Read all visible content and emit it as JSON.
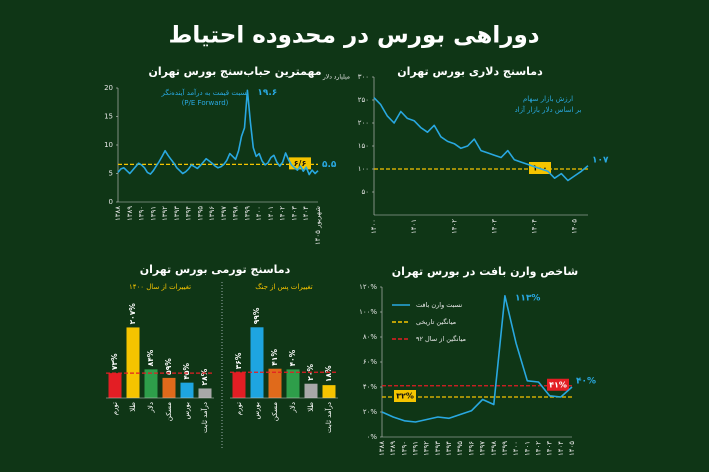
{
  "title": "دوراهی بورس در محدوده احتیاط",
  "chart_data": [
    {
      "type": "line",
      "title": "مهمترین حباب‌سنج بورس تهران",
      "annotations": [
        "نسبت قیمت به درآمد آینده‌نگر",
        "(P/E Forward)"
      ],
      "categories": [
        "۱۳۸۸",
        null,
        null,
        null,
        "۱۳۸۹",
        null,
        null,
        null,
        "۱۳۹۰",
        null,
        null,
        null,
        "۱۳۹۱",
        null,
        null,
        null,
        "۱۳۹۲",
        null,
        null,
        null,
        "۱۳۹۳",
        null,
        null,
        null,
        "۱۳۹۴",
        null,
        null,
        null,
        "۱۳۹۵",
        null,
        null,
        null,
        "۱۳۹۶",
        null,
        null,
        null,
        "۱۳۹۷",
        null,
        null,
        null,
        "۱۳۹۸",
        null,
        null,
        null,
        "۱۳۹۹",
        null,
        null,
        null,
        "۱۴۰۰",
        null,
        null,
        null,
        "۱۴۰۱",
        null,
        null,
        null,
        "۱۴۰۲",
        null,
        null,
        null,
        "۱۴۰۳",
        null,
        null,
        null,
        "۱۴۰۴",
        null,
        null,
        null,
        "شهریور ۱۴۰۵"
      ],
      "series": [
        {
          "color": "#29a8e0",
          "values": [
            5.2,
            5.8,
            6.0,
            5.5,
            5.0,
            5.6,
            6.2,
            6.8,
            6.5,
            6.0,
            5.2,
            4.9,
            5.5,
            6.3,
            7.1,
            8.0,
            9.0,
            8.2,
            7.5,
            6.8,
            6.0,
            5.5,
            5.0,
            5.3,
            5.8,
            6.5,
            6.2,
            5.9,
            6.4,
            7.0,
            7.6,
            7.2,
            6.8,
            6.3,
            6.0,
            6.2,
            6.6,
            7.3,
            8.5,
            8.0,
            7.5,
            9.0,
            11.5,
            13.0,
            19.6,
            14.0,
            9.5,
            8.0,
            8.5,
            7.2,
            6.5,
            6.9,
            7.8,
            8.2,
            7.0,
            6.3,
            7.0,
            8.6,
            7.4,
            6.5,
            6.0,
            5.6,
            6.3,
            5.4,
            6.1,
            4.8,
            5.6,
            5.0,
            5.5
          ],
          "value_labels": [
            null,
            null,
            null,
            null,
            null,
            null,
            null,
            null,
            null,
            null,
            null,
            null,
            null,
            null,
            null,
            null,
            null,
            null,
            null,
            null,
            null,
            null,
            null,
            null,
            null,
            null,
            null,
            null,
            null,
            null,
            null,
            null,
            null,
            null,
            null,
            null,
            null,
            null,
            null,
            null,
            null,
            null,
            null,
            null,
            "۱۹.۶",
            null,
            null,
            null,
            null,
            null,
            null,
            null,
            null,
            null,
            null,
            null,
            null,
            null,
            null,
            null,
            null,
            null,
            null,
            null,
            null,
            null,
            null,
            null,
            "۵.۵"
          ]
        }
      ],
      "reference_lines": [
        {
          "value": 6.6,
          "label": "۶/۶",
          "color": "#f5c400"
        }
      ],
      "ylim": [
        0,
        20
      ],
      "yticks": [
        0,
        5,
        10,
        15,
        20
      ]
    },
    {
      "type": "line",
      "title": "دماسنج دلاری بورس تهران",
      "y_label": "میلیارد دلار",
      "annotations": [
        "ارزش بازار سهام",
        "بر اساس دلار بازار آزاد"
      ],
      "categories": [
        "۱۴۰۰",
        null,
        null,
        null,
        null,
        null,
        "۱۴۰۱",
        null,
        null,
        null,
        null,
        null,
        "۱۴۰۲",
        null,
        null,
        null,
        null,
        null,
        "۱۴۰۳",
        null,
        null,
        null,
        null,
        null,
        "۱۴۰۴",
        null,
        null,
        null,
        null,
        null,
        "۱۴۰۵",
        null,
        null
      ],
      "series": [
        {
          "color": "#29a8e0",
          "values": [
            255,
            240,
            215,
            200,
            225,
            210,
            205,
            190,
            180,
            195,
            170,
            160,
            155,
            145,
            150,
            165,
            140,
            135,
            130,
            125,
            140,
            120,
            115,
            110,
            105,
            100,
            95,
            80,
            90,
            75,
            85,
            95,
            107
          ],
          "value_labels": [
            null,
            null,
            null,
            null,
            null,
            null,
            null,
            null,
            null,
            null,
            null,
            null,
            null,
            null,
            null,
            null,
            null,
            null,
            null,
            null,
            null,
            null,
            null,
            null,
            null,
            null,
            null,
            null,
            null,
            null,
            null,
            null,
            "۱۰۷"
          ]
        }
      ],
      "reference_lines": [
        {
          "value": 100,
          "label": "۱۰۰",
          "color": "#f5c400"
        }
      ],
      "ylim": [
        0,
        300
      ],
      "yticks": [
        {
          "value": 50,
          "label": "۵۰"
        },
        {
          "value": 100,
          "label": "۱۰۰"
        },
        {
          "value": 150,
          "label": "۱۵۰"
        },
        {
          "value": 200,
          "label": "۲۰۰"
        },
        {
          "value": 250,
          "label": "۲۵۰"
        },
        {
          "value": 300,
          "label": "۳۰۰"
        }
      ]
    },
    {
      "type": "bar-panels",
      "title": "دماسنج تورمی بورس تهران",
      "reference_color": "#e31e24",
      "panels": [
        {
          "subtitle": "تغییرات از سال ۱۴۰۰",
          "categories": [
            "تورم",
            "طلا",
            "دلار",
            "مسکن",
            "بورس",
            "درآمد ثابت"
          ],
          "values": [
            73,
            207,
            84,
            59,
            45,
            28
          ],
          "value_labels": [
            "۷۳%",
            "۲۰۷%",
            "۸۴%",
            "۵۹%",
            "۴۵%",
            "۲۸%"
          ],
          "colors": [
            "#e31e24",
            "#f5c400",
            "#2e9e4a",
            "#e06a1b",
            "#1ea5e0",
            "#a8a8a8"
          ],
          "ylim": [
            0,
            220
          ]
        },
        {
          "subtitle": "تغییرات پس از جنگ",
          "categories": [
            "تورم",
            "بورس",
            "مسکن",
            "دلار",
            "طلا",
            "درآمد ثابت"
          ],
          "values": [
            36,
            99,
            41,
            40,
            20,
            18
          ],
          "value_labels": [
            "۳۶%",
            "۹۹%",
            "۴۱%",
            "۴۰%",
            "۲۰%",
            "۱۸%"
          ],
          "colors": [
            "#e31e24",
            "#1ea5e0",
            "#e06a1b",
            "#2e9e4a",
            "#a8a8a8",
            "#f5c400"
          ],
          "ylim": [
            0,
            105
          ]
        }
      ]
    },
    {
      "type": "line",
      "title": "شاخص وارن بافت در بورس تهران",
      "categories": [
        "۱۳۸۸",
        "۱۳۸۹",
        "۱۳۹۰",
        "۱۳۹۱",
        "۱۳۹۲",
        "۱۳۹۳",
        "۱۳۹۴",
        "۱۳۹۵",
        "۱۳۹۶",
        "۱۳۹۷",
        "۱۳۹۸",
        "۱۳۹۹",
        "۱۴۰۰",
        "۱۴۰۱",
        "۱۴۰۲",
        "۱۴۰۳",
        "۱۴۰۴",
        "۱۴۰۵"
      ],
      "series": [
        {
          "name": "نسبت وارن بافت",
          "color": "#29a8e0",
          "values": [
            20,
            16,
            13,
            12,
            14,
            16,
            15,
            18,
            21,
            30,
            26,
            113,
            75,
            45,
            44,
            33,
            32,
            40
          ],
          "value_labels": [
            null,
            null,
            null,
            null,
            null,
            null,
            null,
            null,
            null,
            null,
            null,
            "۱۱۳%",
            null,
            null,
            null,
            null,
            null,
            "۴۰%"
          ]
        }
      ],
      "reference_lines": [
        {
          "name": "میانگین تاریخی",
          "value": 32,
          "label": "۳۲%",
          "color": "#f5c400"
        },
        {
          "name": "میانگین از سال ۹۲",
          "value": 41,
          "label": "۴۱%",
          "color": "#e31e24"
        }
      ],
      "ylim": [
        0,
        120
      ],
      "yticks": [
        {
          "value": 0,
          "label": "۰%"
        },
        {
          "value": 20,
          "label": "۲۰%"
        },
        {
          "value": 40,
          "label": "۴۰%"
        },
        {
          "value": 60,
          "label": "۶۰%"
        },
        {
          "value": 80,
          "label": "۸۰%"
        },
        {
          "value": 100,
          "label": "۱۰۰%"
        },
        {
          "value": 120,
          "label": "۱۲۰%"
        }
      ]
    }
  ]
}
